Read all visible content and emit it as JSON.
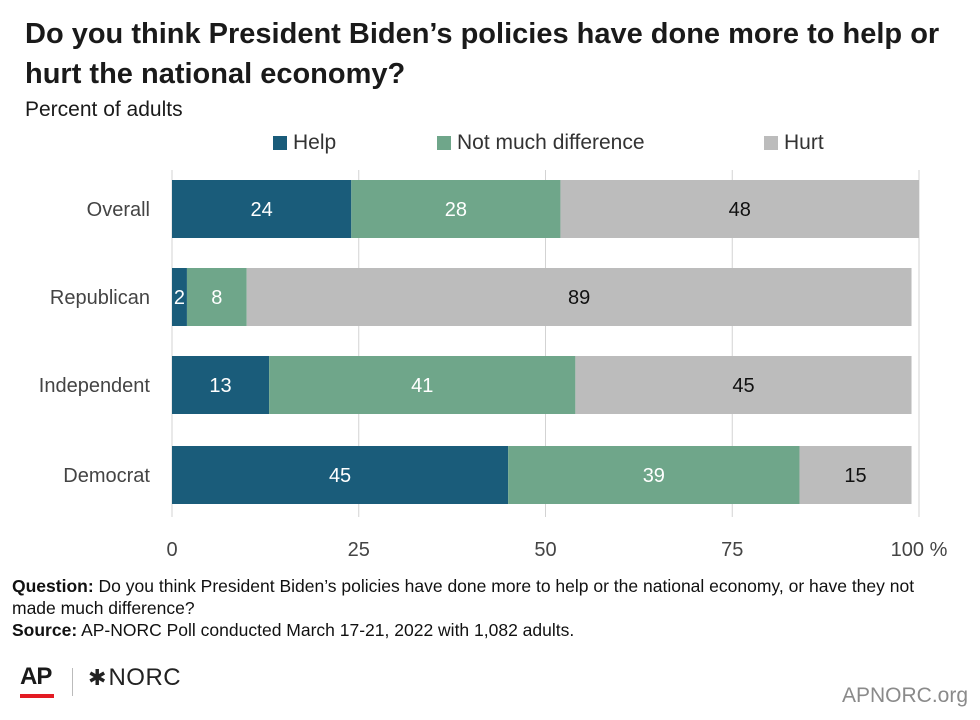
{
  "title": "Do you think President Biden’s policies have done more to help or hurt the national economy?",
  "subtitle": "Percent of adults",
  "legend": [
    {
      "label": "Help",
      "color": "#1a5c7a"
    },
    {
      "label": "Not much difference",
      "color": "#6fa68a"
    },
    {
      "label": "Hurt",
      "color": "#bcbcbc"
    }
  ],
  "chart_data": {
    "type": "bar",
    "orientation": "horizontal",
    "stacked": true,
    "categories": [
      "Overall",
      "Republican",
      "Independent",
      "Democrat"
    ],
    "series": [
      {
        "name": "Help",
        "values": [
          24,
          2,
          13,
          45
        ],
        "color": "#1a5c7a",
        "label_color": "#ffffff"
      },
      {
        "name": "Not much difference",
        "values": [
          28,
          8,
          41,
          39
        ],
        "color": "#6fa68a",
        "label_color": "#ffffff"
      },
      {
        "name": "Hurt",
        "values": [
          48,
          89,
          45,
          15
        ],
        "color": "#bcbcbc",
        "label_color": "#111111"
      }
    ],
    "xlim": [
      0,
      100
    ],
    "xticks": [
      "0",
      "25",
      "50",
      "75",
      "100 %"
    ],
    "grid": true,
    "legend_position": "top"
  },
  "notes": {
    "question_label": "Question:",
    "question_text": "Do you think President Biden’s policies have done more to help or the national economy, or have they not made much difference?",
    "source_label": "Source:",
    "source_text": "AP-NORC Poll conducted March 17-21, 2022 with 1,082 adults."
  },
  "logos": {
    "ap": "AP",
    "norc_star": "✱",
    "norc": "NORC",
    "site": "APNORC.org"
  }
}
